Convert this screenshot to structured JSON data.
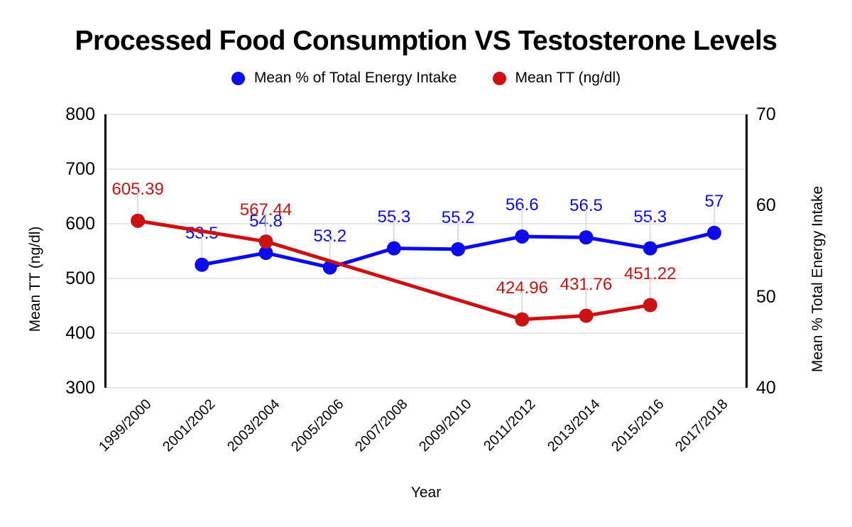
{
  "title": "Processed Food Consumption VS Testosterone Levels",
  "legend": {
    "items": [
      {
        "label": "Mean % of Total Energy Intake",
        "color": "#0b0beb"
      },
      {
        "label": "Mean TT (ng/dl)",
        "color": "#cc1111"
      }
    ]
  },
  "chart_data": {
    "type": "line",
    "title": "Processed Food Consumption VS Testosterone Levels",
    "xlabel": "Year",
    "categories": [
      "1999/2000",
      "2001/2002",
      "2003/2004",
      "2005/2006",
      "2007/2008",
      "2009/2010",
      "2011/2012",
      "2013/2014",
      "2015/2016",
      "2017/2018"
    ],
    "series": [
      {
        "name": "Mean % of Total Energy Intake",
        "axis": "right",
        "color": "#0b0beb",
        "values": [
          null,
          53.5,
          54.8,
          53.2,
          55.3,
          55.2,
          56.6,
          56.5,
          55.3,
          57
        ],
        "labels": [
          null,
          "53.5",
          "54.8",
          "53.2",
          "55.3",
          "55.2",
          "56.6",
          "56.5",
          "55.3",
          "57"
        ]
      },
      {
        "name": "Mean TT (ng/dl)",
        "axis": "left",
        "color": "#cc1111",
        "values": [
          605.39,
          null,
          567.44,
          null,
          null,
          null,
          424.96,
          431.76,
          451.22,
          null
        ],
        "labels": [
          "605.39",
          null,
          "567.44",
          null,
          null,
          null,
          "424.96",
          "431.76",
          "451.22",
          null
        ]
      }
    ],
    "left_axis": {
      "title": "Mean TT (ng/dl)",
      "ylim": [
        300,
        800
      ],
      "ticks": [
        800,
        700,
        600,
        500,
        400,
        300
      ]
    },
    "right_axis": {
      "title": "Mean % Total Energy Intake",
      "ylim": [
        40,
        70
      ],
      "ticks": [
        70,
        60,
        50,
        40
      ]
    },
    "grid": true,
    "legend_position": "top",
    "colors": {
      "grid": "#e6e6e6",
      "stem": "#dddddd",
      "axis_spine": "#000000",
      "text": "#000000"
    }
  }
}
